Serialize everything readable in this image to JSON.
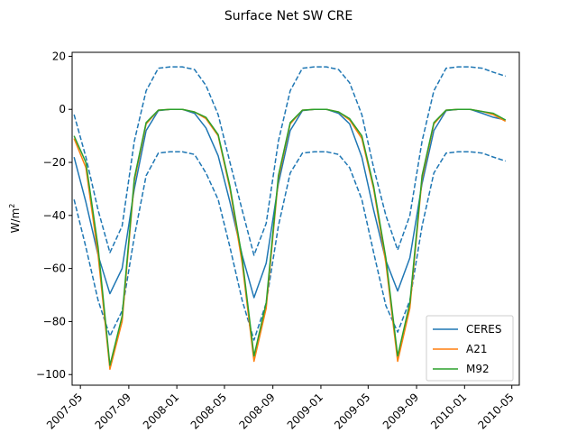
{
  "chart_data": {
    "type": "line",
    "title": "Surface Net SW CRE",
    "xlabel": "",
    "ylabel": "W/m",
    "ylabel_superscript": "2",
    "ylim": [
      -104,
      21.5
    ],
    "xlim": [
      "2007-04-10",
      "2010-05-20"
    ],
    "yticks": [
      20,
      0,
      -20,
      -40,
      -60,
      -80,
      -100
    ],
    "xticks": [
      {
        "date": "2007-05-01",
        "label": "2007-05"
      },
      {
        "date": "2007-09-01",
        "label": "2007-09"
      },
      {
        "date": "2008-01-01",
        "label": "2008-01"
      },
      {
        "date": "2008-05-01",
        "label": "2008-05"
      },
      {
        "date": "2008-09-01",
        "label": "2008-09"
      },
      {
        "date": "2009-01-01",
        "label": "2009-01"
      },
      {
        "date": "2009-05-01",
        "label": "2009-05"
      },
      {
        "date": "2009-09-01",
        "label": "2009-09"
      },
      {
        "date": "2010-01-01",
        "label": "2010-01"
      },
      {
        "date": "2010-05-01",
        "label": "2010-05"
      }
    ],
    "legend_position": "lower-right",
    "x": [
      "2007-04-15",
      "2007-05-15",
      "2007-06-15",
      "2007-07-15",
      "2007-08-15",
      "2007-09-15",
      "2007-10-15",
      "2007-11-15",
      "2007-12-15",
      "2008-01-15",
      "2008-02-15",
      "2008-03-15",
      "2008-04-15",
      "2008-05-15",
      "2008-06-15",
      "2008-07-15",
      "2008-08-15",
      "2008-09-15",
      "2008-10-15",
      "2008-11-15",
      "2008-12-15",
      "2009-01-15",
      "2009-02-15",
      "2009-03-15",
      "2009-04-15",
      "2009-05-15",
      "2009-06-15",
      "2009-07-15",
      "2009-08-15",
      "2009-09-15",
      "2009-10-15",
      "2009-11-15",
      "2009-12-15",
      "2010-01-15",
      "2010-02-15",
      "2010-03-15",
      "2010-04-15"
    ],
    "series": [
      {
        "name": "CERES",
        "color": "#1f77b4",
        "style": "solid",
        "values": [
          -18,
          -35,
          -55,
          -69.5,
          -60,
          -30,
          -8,
          -0.5,
          0,
          0,
          -1.5,
          -7,
          -17.5,
          -35,
          -55,
          -71,
          -58,
          -28,
          -8,
          -0.5,
          0,
          0,
          -1.5,
          -5.5,
          -18,
          -38,
          -57,
          -68.5,
          -56,
          -28,
          -8,
          -0.5,
          0,
          0,
          -1.5,
          -3,
          -4
        ]
      },
      {
        "name": "A21",
        "color": "#ff7f0e",
        "style": "solid",
        "values": [
          -11,
          -22,
          -55,
          -98,
          -80,
          -27,
          -5.5,
          -0.3,
          0,
          0,
          -1,
          -3.5,
          -10,
          -30,
          -58,
          -95,
          -75,
          -26,
          -5.5,
          -0.3,
          0,
          0,
          -1,
          -4,
          -11,
          -30,
          -58,
          -95,
          -75,
          -26,
          -5.5,
          -0.3,
          0,
          0,
          -0.8,
          -2,
          -4.5
        ]
      },
      {
        "name": "M92",
        "color": "#2ca02c",
        "style": "solid",
        "values": [
          -10,
          -20,
          -52,
          -96.5,
          -78,
          -26,
          -5,
          -0.3,
          0,
          0,
          -1,
          -3,
          -9.5,
          -29,
          -56,
          -93,
          -73,
          -25,
          -5,
          -0.3,
          0,
          0,
          -1,
          -3.5,
          -10,
          -29,
          -56,
          -93,
          -73,
          -25,
          -5,
          -0.3,
          0,
          0,
          -0.8,
          -1.5,
          -4
        ]
      },
      {
        "name": "",
        "color": "#1f77b4",
        "style": "dashed",
        "values": [
          -2,
          -18,
          -38,
          -54,
          -44,
          -12,
          7,
          15.5,
          16,
          16,
          15,
          9,
          -2,
          -20,
          -38,
          -55,
          -43,
          -12,
          7,
          15.5,
          16,
          16,
          15,
          10,
          -2,
          -22,
          -40,
          -53,
          -40,
          -12,
          7,
          15.5,
          16,
          16,
          15.5,
          14,
          12.5
        ]
      },
      {
        "name": "",
        "color": "#1f77b4",
        "style": "dashed",
        "values": [
          -34,
          -52,
          -72,
          -85.5,
          -76,
          -48,
          -25,
          -16.5,
          -16,
          -16,
          -17,
          -24,
          -34,
          -52,
          -72,
          -87,
          -73,
          -44,
          -24,
          -16.5,
          -16,
          -16,
          -17,
          -22,
          -34,
          -54,
          -74,
          -84,
          -72,
          -44,
          -24,
          -16.5,
          -16,
          -16,
          -16.5,
          -18,
          -19.5
        ]
      }
    ]
  }
}
